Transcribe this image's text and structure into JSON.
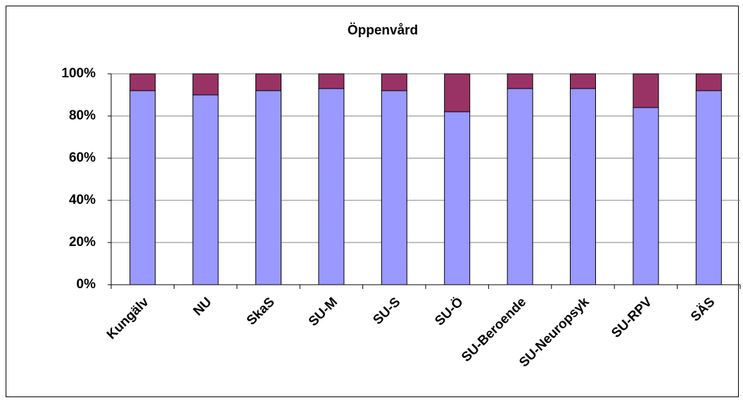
{
  "chart_data": {
    "type": "stacked_bar",
    "title": "Öppenvård",
    "categories": [
      "Kungälv",
      "NU",
      "SkaS",
      "SU-M",
      "SU-S",
      "SU-Ö",
      "SU-Beroende",
      "SU-Neuropsyk",
      "SU-RPV",
      "SÄS"
    ],
    "series": [
      {
        "color": "#9999ff",
        "values": [
          92,
          90,
          92,
          93,
          92,
          82,
          93,
          93,
          84,
          92
        ]
      },
      {
        "color": "#993366",
        "values": [
          8,
          10,
          8,
          7,
          8,
          18,
          7,
          7,
          16,
          8
        ]
      }
    ],
    "ylim": [
      0,
      100
    ],
    "yticks": [
      {
        "value": 0,
        "label": "0%"
      },
      {
        "value": 20,
        "label": "20%"
      },
      {
        "value": 40,
        "label": "40%"
      },
      {
        "value": 60,
        "label": "60%"
      },
      {
        "value": 80,
        "label": "80%"
      },
      {
        "value": 100,
        "label": "100%"
      }
    ],
    "grid": true
  }
}
